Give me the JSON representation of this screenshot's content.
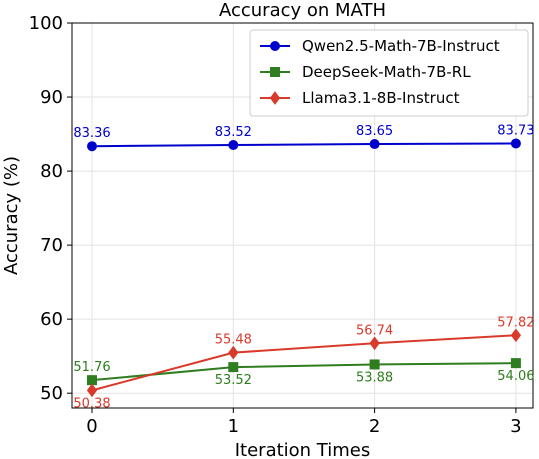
{
  "chart_data": {
    "type": "line",
    "title": "Accuracy on MATH",
    "xlabel": "Iteration Times",
    "ylabel": "Accuracy (%)",
    "x": [
      0,
      1,
      2,
      3
    ],
    "x_ticks": [
      "0",
      "1",
      "2",
      "3"
    ],
    "ylim": [
      48,
      100
    ],
    "y_ticks": [
      "50",
      "60",
      "70",
      "80",
      "90",
      "100"
    ],
    "grid": true,
    "legend_position": "top-right",
    "series": [
      {
        "name": "Qwen2.5-Math-7B-Instruct",
        "color": "#0000cc",
        "marker": "circle",
        "label_position": "above",
        "values": [
          83.36,
          83.52,
          83.65,
          83.73
        ],
        "labels": [
          "83.36",
          "83.52",
          "83.65",
          "83.73"
        ]
      },
      {
        "name": "DeepSeek-Math-7B-RL",
        "color": "#2e7d1e",
        "marker": "square",
        "label_position": "below",
        "values": [
          51.76,
          53.52,
          53.88,
          54.06
        ],
        "labels": [
          "51.76",
          "53.52",
          "53.88",
          "54.06"
        ]
      },
      {
        "name": "Llama3.1-8B-Instruct",
        "color": "#d93a2b",
        "marker": "diamond",
        "label_position": "above",
        "values": [
          50.38,
          55.48,
          56.74,
          57.82
        ],
        "labels": [
          "50.38",
          "55.48",
          "56.74",
          "57.82"
        ]
      }
    ]
  }
}
